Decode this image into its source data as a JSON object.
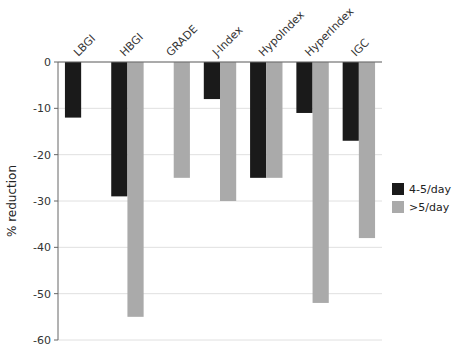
{
  "chart_data": {
    "type": "bar",
    "categories": [
      "LBGI",
      "HBGI",
      "GRADE",
      "J-Index",
      "HypoIndex",
      "HyperIndex",
      "IGC"
    ],
    "series": [
      {
        "name": "4-5/day",
        "color": "#1a1a1a",
        "values": [
          -12,
          -29,
          null,
          -8,
          -25,
          -11,
          -17
        ]
      },
      {
        "name": ">5/day",
        "color": "#aaaaaa",
        "values": [
          null,
          -55,
          -25,
          -30,
          -25,
          -52,
          -38
        ]
      }
    ],
    "ylabel": "% reduction",
    "ylim": [
      -60,
      0
    ],
    "yticks": [
      0,
      -10,
      -20,
      -30,
      -40,
      -50,
      -60
    ],
    "grid": true,
    "legend": "right"
  }
}
